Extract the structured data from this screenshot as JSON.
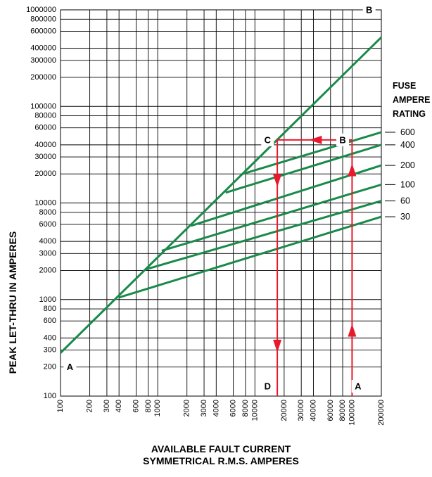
{
  "chart_data": {
    "type": "line",
    "xscale": "log",
    "yscale": "log",
    "xlim": [
      100,
      200000
    ],
    "ylim": [
      100,
      1000000
    ],
    "grid": true,
    "xlabel": [
      "AVAILABLE FAULT CURRENT",
      "SYMMETRICAL R.M.S. AMPERES"
    ],
    "ylabel": "PEAK LET-THRU IN AMPERES",
    "x_ticks": [
      100,
      200,
      300,
      400,
      600,
      800,
      1000,
      2000,
      3000,
      4000,
      6000,
      8000,
      10000,
      20000,
      30000,
      40000,
      60000,
      80000,
      100000,
      200000
    ],
    "y_ticks": [
      100,
      200,
      300,
      400,
      600,
      800,
      1000,
      2000,
      3000,
      4000,
      6000,
      8000,
      10000,
      20000,
      30000,
      40000,
      60000,
      80000,
      100000,
      200000,
      300000,
      400000,
      600000,
      800000,
      1000000
    ],
    "legend_title": [
      "FUSE",
      "AMPERE",
      "RATING"
    ],
    "colors": {
      "curve": "#1a8a4a",
      "arrow": "#e8192c",
      "grid": "#000000"
    },
    "ab_line": {
      "name": "A-B",
      "points": [
        [
          100,
          280
        ],
        [
          200000,
          520000
        ]
      ]
    },
    "series": [
      {
        "name": "30",
        "points": [
          [
            400,
            1050
          ],
          [
            200000,
            7200
          ]
        ]
      },
      {
        "name": "60",
        "points": [
          [
            750,
            2050
          ],
          [
            200000,
            10500
          ]
        ]
      },
      {
        "name": "100",
        "points": [
          [
            1100,
            3200
          ],
          [
            200000,
            15500
          ]
        ]
      },
      {
        "name": "200",
        "points": [
          [
            2200,
            5800
          ],
          [
            200000,
            24500
          ]
        ]
      },
      {
        "name": "400",
        "points": [
          [
            5000,
            12800
          ],
          [
            200000,
            40000
          ]
        ]
      },
      {
        "name": "600",
        "points": [
          [
            7500,
            20000
          ],
          [
            200000,
            54000
          ]
        ]
      }
    ],
    "arrows": [
      {
        "from": [
          100000,
          100
        ],
        "to": [
          100000,
          45000
        ],
        "markers": [
          [
            100000,
            480
          ],
          [
            100000,
            22000
          ]
        ]
      },
      {
        "from": [
          100000,
          45000
        ],
        "to": [
          17000,
          45000
        ],
        "markers": [
          [
            42000,
            45000
          ]
        ]
      },
      {
        "from": [
          17000,
          45000
        ],
        "to": [
          17000,
          100
        ],
        "markers": [
          [
            17000,
            17000
          ],
          [
            17000,
            330
          ]
        ]
      }
    ],
    "annotations": [
      {
        "text": "A",
        "at": [
          125,
          200
        ]
      },
      {
        "text": "A",
        "at": [
          115000,
          100
        ]
      },
      {
        "text": "B",
        "at": [
          150000,
          1000000
        ]
      },
      {
        "text": "B",
        "at": [
          80000,
          45000
        ]
      },
      {
        "text": "C",
        "at": [
          13500,
          45000
        ]
      },
      {
        "text": "D",
        "at": [
          13500,
          100
        ]
      }
    ]
  }
}
